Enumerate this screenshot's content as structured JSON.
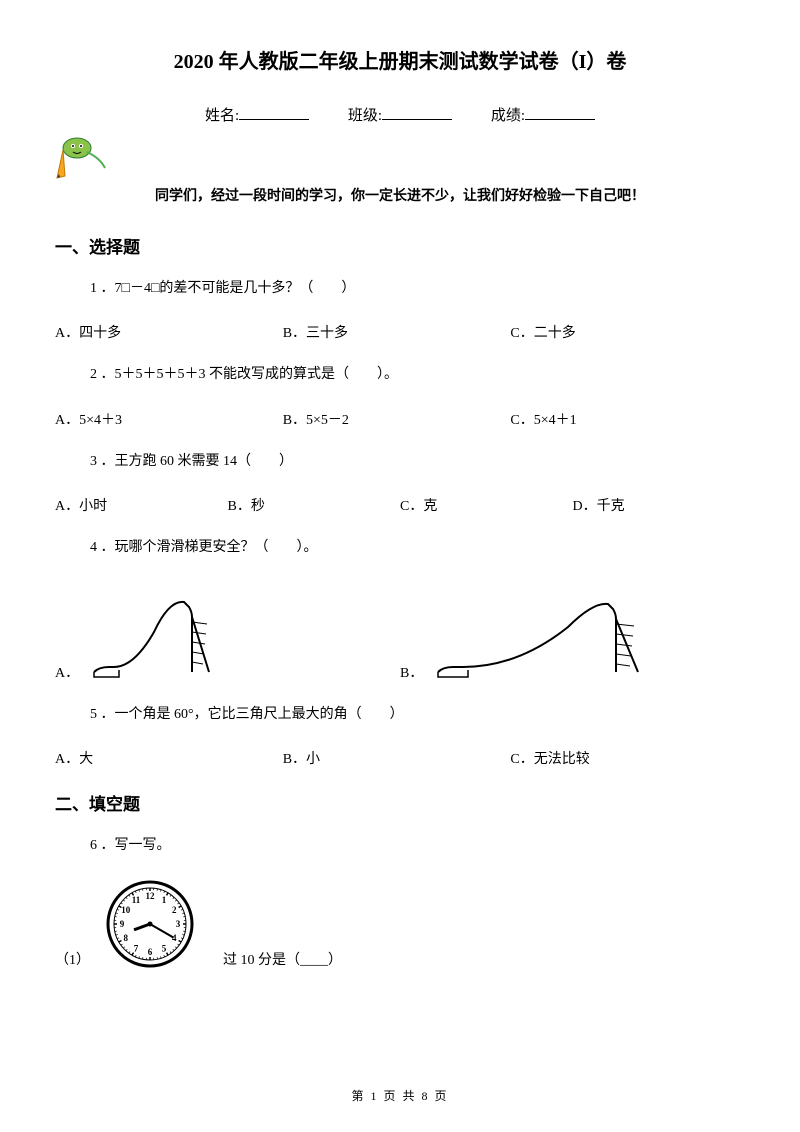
{
  "title": "2020 年人教版二年级上册期末测试数学试卷（I）卷",
  "info": {
    "name_label": "姓名:",
    "class_label": "班级:",
    "score_label": "成绩:"
  },
  "encourage": "同学们，经过一段时间的学习，你一定长进不少，让我们好好检验一下自己吧！",
  "section1": {
    "title": "一、选择题",
    "q1": {
      "text": "1 ．7□－4□的差不可能是几十多？（　　）",
      "optA": "A．四十多",
      "optB": "B．三十多",
      "optC": "C．二十多"
    },
    "q2": {
      "text": "2 ．5＋5＋5＋5＋3 不能改写成的算式是（　　）。",
      "optA": "A．5×4＋3",
      "optB": "B．5×5－2",
      "optC": "C．5×4＋1"
    },
    "q3": {
      "text": "3 ．王方跑 60 米需要 14（　　）",
      "optA": "A．小时",
      "optB": "B．秒",
      "optC": "C．克",
      "optD": "D．千克"
    },
    "q4": {
      "text": "4 ．玩哪个滑滑梯更安全？（　　）。",
      "optA": "A．",
      "optB": "B．"
    },
    "q5": {
      "text": "5 ．一个角是 60°，它比三角尺上最大的角（　　）",
      "optA": "A．大",
      "optB": "B．小",
      "optC": "C．无法比较"
    }
  },
  "section2": {
    "title": "二、填空题",
    "q6": {
      "text": "6 ．写一写。",
      "sub_label": "（1）",
      "after_text": "过 10 分是（____）"
    }
  },
  "mascot": {
    "color_pencil_body": "#f5a623",
    "color_pencil_wood": "#d4a574",
    "color_eraser": "#8bc34a",
    "color_arm": "#4caf50"
  },
  "slide": {
    "stroke": "#000000",
    "fill": "#ffffff"
  },
  "clock": {
    "stroke": "#000000",
    "fill": "#ffffff",
    "hour": 8,
    "minute": 20,
    "numbers": [
      "12",
      "1",
      "2",
      "3",
      "4",
      "5",
      "6",
      "7",
      "8",
      "9",
      "10",
      "11"
    ]
  },
  "footer": {
    "page_current": "1",
    "page_total": "8",
    "template": "第 {cur} 页 共 {tot} 页"
  }
}
